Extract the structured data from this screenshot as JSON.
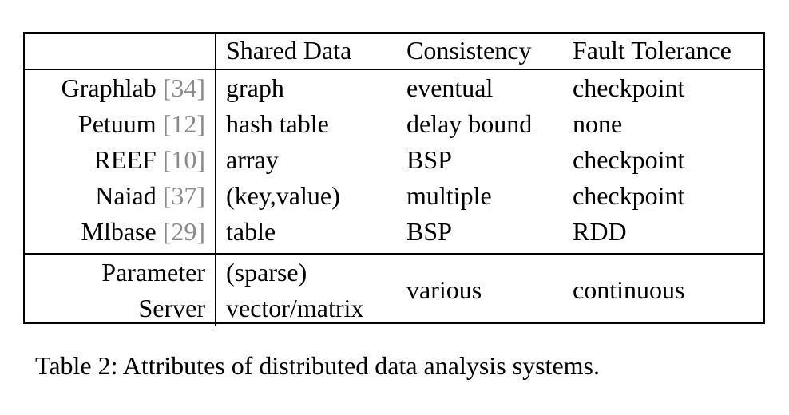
{
  "table": {
    "headers": [
      "",
      "Shared Data",
      "Consistency",
      "Fault Tolerance"
    ],
    "rows": [
      {
        "system": "Graphlab",
        "cite": "34",
        "shared_data": "graph",
        "consistency": "eventual",
        "fault_tolerance": "checkpoint"
      },
      {
        "system": "Petuum",
        "cite": "12",
        "shared_data": "hash table",
        "consistency": "delay bound",
        "fault_tolerance": "none"
      },
      {
        "system": "REEF",
        "cite": "10",
        "shared_data": "array",
        "consistency": "BSP",
        "fault_tolerance": "checkpoint"
      },
      {
        "system": "Naiad",
        "cite": "37",
        "shared_data": "(key,value)",
        "consistency": "multiple",
        "fault_tolerance": "checkpoint"
      },
      {
        "system": "Mlbase",
        "cite": "29",
        "shared_data": "table",
        "consistency": "BSP",
        "fault_tolerance": "RDD"
      }
    ],
    "parameter_server": {
      "system_line1": "Parameter",
      "system_line2": "Server",
      "shared_data_line1": "(sparse)",
      "shared_data_line2": "vector/matrix",
      "consistency": "various",
      "fault_tolerance": "continuous"
    }
  },
  "caption": "Table 2: Attributes of distributed data analysis systems.",
  "colors": {
    "text": "#000000",
    "citation": "#8a8a8a",
    "rule": "#000000"
  }
}
